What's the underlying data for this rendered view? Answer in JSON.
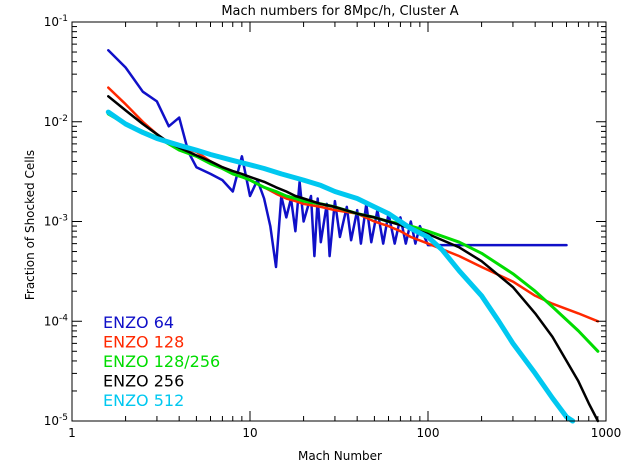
{
  "chart_data": {
    "type": "line",
    "title": "Mach numbers for 8Mpc/h, Cluster A",
    "xlabel": "Mach Number",
    "ylabel": "Fraction of Shocked Cells",
    "xscale": "log",
    "yscale": "log",
    "xlim": [
      1,
      1000
    ],
    "ylim": [
      1e-05,
      0.1
    ],
    "x_ticks": [
      {
        "value": 1,
        "label": "1"
      },
      {
        "value": 10,
        "label": "10"
      },
      {
        "value": 100,
        "label": "100"
      },
      {
        "value": 1000,
        "label": "1000"
      }
    ],
    "y_ticks": [
      {
        "value": 0.1,
        "base": "10",
        "exp": "-1"
      },
      {
        "value": 0.01,
        "base": "10",
        "exp": "-2"
      },
      {
        "value": 0.001,
        "base": "10",
        "exp": "-3"
      },
      {
        "value": 0.0001,
        "base": "10",
        "exp": "-4"
      },
      {
        "value": 1e-05,
        "base": "10",
        "exp": "-5"
      }
    ],
    "grid": false,
    "legend_position": "bottom-left",
    "series": [
      {
        "name": "ENZO 64",
        "color": "#1010c8",
        "points": [
          [
            1.6,
            0.052
          ],
          [
            2.0,
            0.035
          ],
          [
            2.5,
            0.02
          ],
          [
            3.0,
            0.016
          ],
          [
            3.5,
            0.009
          ],
          [
            4.0,
            0.011
          ],
          [
            4.5,
            0.005
          ],
          [
            5.0,
            0.0035
          ],
          [
            6.0,
            0.003
          ],
          [
            7.0,
            0.0026
          ],
          [
            8.0,
            0.002
          ],
          [
            9.0,
            0.0045
          ],
          [
            10.0,
            0.0018
          ],
          [
            11.0,
            0.0026
          ],
          [
            12.0,
            0.0017
          ],
          [
            13.0,
            0.0009
          ],
          [
            14.0,
            0.00035
          ],
          [
            15.0,
            0.0018
          ],
          [
            16.0,
            0.0011
          ],
          [
            17.0,
            0.0017
          ],
          [
            18.0,
            0.0008
          ],
          [
            19.0,
            0.0025
          ],
          [
            20.0,
            0.001
          ],
          [
            22.0,
            0.0018
          ],
          [
            23.0,
            0.00045
          ],
          [
            24.0,
            0.0017
          ],
          [
            25.0,
            0.00062
          ],
          [
            27.0,
            0.0015
          ],
          [
            28.0,
            0.00045
          ],
          [
            30.0,
            0.0016
          ],
          [
            32.0,
            0.0007
          ],
          [
            35.0,
            0.0014
          ],
          [
            37.0,
            0.00065
          ],
          [
            40.0,
            0.0013
          ],
          [
            42.0,
            0.0006
          ],
          [
            45.0,
            0.0015
          ],
          [
            48.0,
            0.00062
          ],
          [
            52.0,
            0.0013
          ],
          [
            56.0,
            0.0006
          ],
          [
            60.0,
            0.0012
          ],
          [
            65.0,
            0.0006
          ],
          [
            70.0,
            0.0011
          ],
          [
            75.0,
            0.0006
          ],
          [
            80.0,
            0.001
          ],
          [
            85.0,
            0.0006
          ],
          [
            90.0,
            0.0009
          ],
          [
            100.0,
            0.00058
          ],
          [
            200.0,
            0.00058
          ],
          [
            400.0,
            0.00058
          ],
          [
            600.0,
            0.00058
          ]
        ]
      },
      {
        "name": "ENZO 128",
        "color": "#ff2800",
        "points": [
          [
            1.6,
            0.022
          ],
          [
            2.0,
            0.015
          ],
          [
            2.5,
            0.01
          ],
          [
            3.0,
            0.0075
          ],
          [
            3.5,
            0.006
          ],
          [
            4.0,
            0.0055
          ],
          [
            5.0,
            0.005
          ],
          [
            6.0,
            0.004
          ],
          [
            7.0,
            0.0035
          ],
          [
            8.0,
            0.003
          ],
          [
            9.0,
            0.0028
          ],
          [
            10.0,
            0.0026
          ],
          [
            12.0,
            0.0022
          ],
          [
            14.0,
            0.0019
          ],
          [
            16.0,
            0.0017
          ],
          [
            18.0,
            0.0016
          ],
          [
            20.0,
            0.0015
          ],
          [
            25.0,
            0.0014
          ],
          [
            30.0,
            0.0013
          ],
          [
            40.0,
            0.0012
          ],
          [
            50.0,
            0.001
          ],
          [
            60.0,
            0.0009
          ],
          [
            70.0,
            0.0008
          ],
          [
            80.0,
            0.0007
          ],
          [
            100.0,
            0.0006
          ],
          [
            150.0,
            0.00045
          ],
          [
            200.0,
            0.00035
          ],
          [
            300.0,
            0.00025
          ],
          [
            400.0,
            0.00018
          ],
          [
            500.0,
            0.00015
          ],
          [
            700.0,
            0.00012
          ],
          [
            900.0,
            0.0001
          ]
        ]
      },
      {
        "name": "ENZO 128/256",
        "color": "#00dc00",
        "points": [
          [
            1.6,
            0.012
          ],
          [
            2.0,
            0.0095
          ],
          [
            2.5,
            0.008
          ],
          [
            3.0,
            0.007
          ],
          [
            3.5,
            0.006
          ],
          [
            4.0,
            0.0052
          ],
          [
            5.0,
            0.0045
          ],
          [
            6.0,
            0.0038
          ],
          [
            7.0,
            0.0034
          ],
          [
            8.0,
            0.003
          ],
          [
            9.0,
            0.0028
          ],
          [
            10.0,
            0.0026
          ],
          [
            12.0,
            0.0022
          ],
          [
            14.0,
            0.002
          ],
          [
            16.0,
            0.0018
          ],
          [
            18.0,
            0.0017
          ],
          [
            20.0,
            0.0016
          ],
          [
            25.0,
            0.0015
          ],
          [
            30.0,
            0.0014
          ],
          [
            40.0,
            0.0012
          ],
          [
            50.0,
            0.0011
          ],
          [
            60.0,
            0.001
          ],
          [
            70.0,
            0.00095
          ],
          [
            80.0,
            0.0009
          ],
          [
            100.0,
            0.0008
          ],
          [
            150.0,
            0.00062
          ],
          [
            200.0,
            0.00048
          ],
          [
            300.0,
            0.0003
          ],
          [
            400.0,
            0.0002
          ],
          [
            500.0,
            0.00014
          ],
          [
            700.0,
            8e-05
          ],
          [
            900.0,
            5e-05
          ]
        ]
      },
      {
        "name": "ENZO 256",
        "color": "#000000",
        "points": [
          [
            1.6,
            0.018
          ],
          [
            2.0,
            0.013
          ],
          [
            2.5,
            0.0095
          ],
          [
            3.0,
            0.0075
          ],
          [
            3.5,
            0.0062
          ],
          [
            4.0,
            0.0055
          ],
          [
            5.0,
            0.0046
          ],
          [
            6.0,
            0.004
          ],
          [
            7.0,
            0.0035
          ],
          [
            8.0,
            0.0032
          ],
          [
            9.0,
            0.003
          ],
          [
            10.0,
            0.0028
          ],
          [
            12.0,
            0.0025
          ],
          [
            14.0,
            0.0022
          ],
          [
            16.0,
            0.002
          ],
          [
            18.0,
            0.0018
          ],
          [
            20.0,
            0.0017
          ],
          [
            25.0,
            0.0015
          ],
          [
            30.0,
            0.0014
          ],
          [
            40.0,
            0.0012
          ],
          [
            50.0,
            0.0011
          ],
          [
            60.0,
            0.001
          ],
          [
            70.0,
            0.00092
          ],
          [
            80.0,
            0.00085
          ],
          [
            100.0,
            0.00075
          ],
          [
            150.0,
            0.00055
          ],
          [
            200.0,
            0.0004
          ],
          [
            300.0,
            0.00022
          ],
          [
            400.0,
            0.00012
          ],
          [
            500.0,
            7e-05
          ],
          [
            600.0,
            4e-05
          ],
          [
            700.0,
            2.5e-05
          ],
          [
            800.0,
            1.5e-05
          ],
          [
            900.0,
            1e-05
          ]
        ]
      },
      {
        "name": "ENZO 512",
        "color": "#00c8f0",
        "points": [
          [
            1.6,
            0.0125
          ],
          [
            2.0,
            0.0095
          ],
          [
            2.5,
            0.0078
          ],
          [
            3.0,
            0.0068
          ],
          [
            4.0,
            0.0058
          ],
          [
            5.0,
            0.0052
          ],
          [
            6.0,
            0.0047
          ],
          [
            8.0,
            0.0041
          ],
          [
            10.0,
            0.0037
          ],
          [
            12.0,
            0.0034
          ],
          [
            15.0,
            0.003
          ],
          [
            20.0,
            0.0026
          ],
          [
            25.0,
            0.0023
          ],
          [
            30.0,
            0.002
          ],
          [
            40.0,
            0.0017
          ],
          [
            50.0,
            0.0014
          ],
          [
            60.0,
            0.0012
          ],
          [
            70.0,
            0.001
          ],
          [
            80.0,
            0.00085
          ],
          [
            100.0,
            0.0007
          ],
          [
            120.0,
            0.00052
          ],
          [
            150.0,
            0.00032
          ],
          [
            200.0,
            0.00018
          ],
          [
            250.0,
            0.0001
          ],
          [
            300.0,
            6e-05
          ],
          [
            400.0,
            3e-05
          ],
          [
            500.0,
            1.7e-05
          ],
          [
            600.0,
            1.1e-05
          ],
          [
            650.0,
            1e-05
          ]
        ]
      }
    ]
  }
}
